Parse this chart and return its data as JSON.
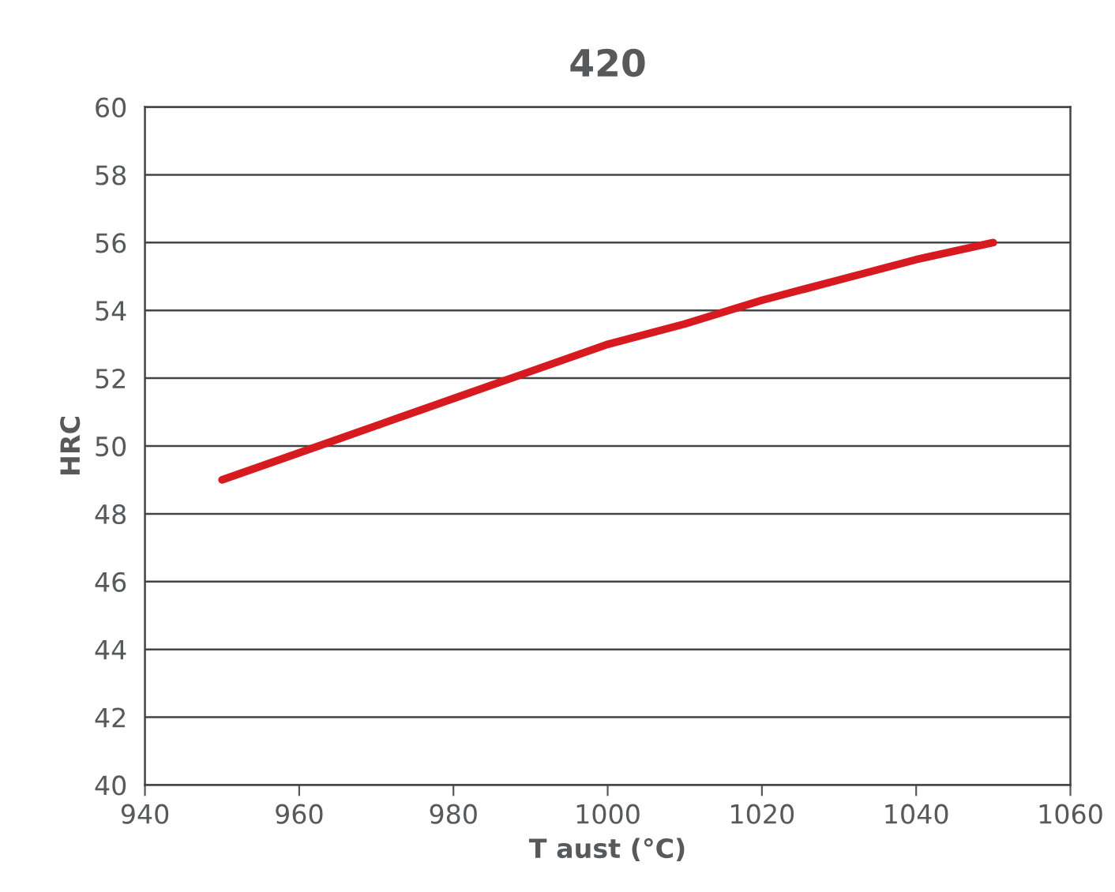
{
  "chart_data": {
    "type": "line",
    "title": "420",
    "xlabel": "T aust (°C)",
    "ylabel": "HRC",
    "x": [
      950,
      960,
      970,
      980,
      990,
      1000,
      1010,
      1020,
      1030,
      1040,
      1050
    ],
    "series": [
      {
        "color": "#d71920",
        "values": [
          49.0,
          49.8,
          50.6,
          51.4,
          52.2,
          53.0,
          53.6,
          54.3,
          54.9,
          55.5,
          56.0
        ]
      }
    ],
    "xlim": [
      940,
      1060
    ],
    "xticks": [
      940,
      960,
      980,
      1000,
      1020,
      1040,
      1060
    ],
    "ylim": [
      40,
      60
    ],
    "yticks": [
      40,
      42,
      44,
      46,
      48,
      50,
      52,
      54,
      56,
      58,
      60
    ],
    "grid": "y",
    "legend": false,
    "marker": "none",
    "line_style": "solid"
  }
}
